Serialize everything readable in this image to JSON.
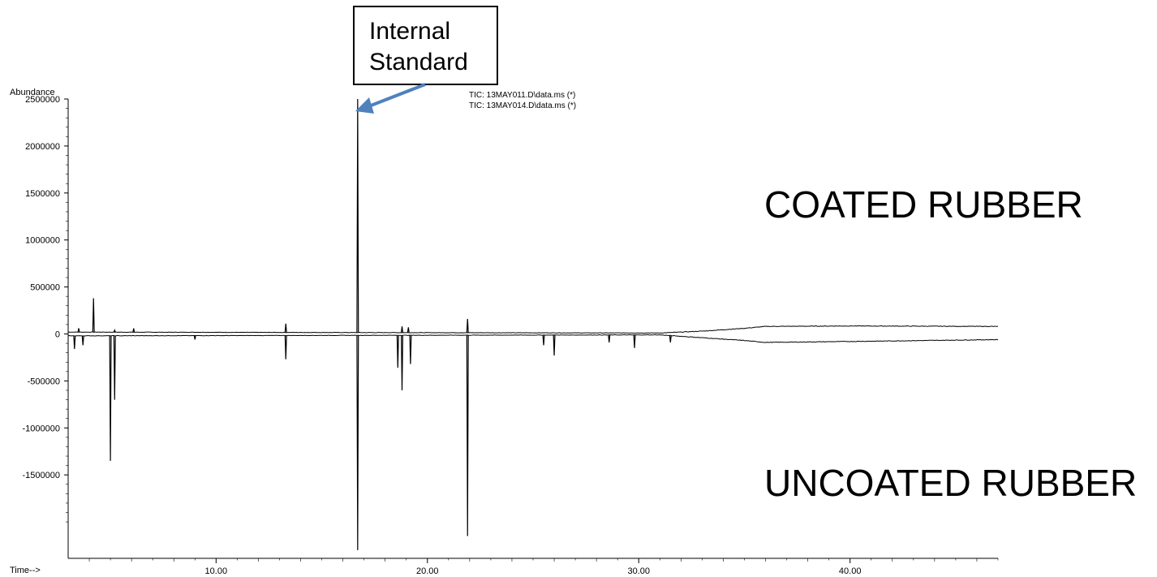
{
  "chart_data": {
    "type": "line",
    "title": "",
    "ylabel": "Abundance",
    "xlabel": "Time-->",
    "xlim": [
      3.0,
      47.0
    ],
    "ylim": [
      -2300000,
      2500000
    ],
    "x_ticks": [
      10,
      20,
      30,
      40
    ],
    "x_tick_labels": [
      "10.00",
      "20.00",
      "30.00",
      "40.00"
    ],
    "y_ticks": [
      2500000,
      2000000,
      1500000,
      1000000,
      500000,
      0,
      -500000,
      -1000000,
      -1500000
    ],
    "y_tick_labels": [
      "2500000",
      "2000000",
      "1500000",
      "1000000",
      "500000",
      "0",
      "-500000",
      "-1000000",
      "-1500000"
    ],
    "grid": false,
    "legend": {
      "placement": "top-center",
      "entries": [
        "TIC: 13MAY011.D\\data.ms (*)",
        "TIC: 13MAY014.D\\data.ms (*)"
      ]
    },
    "series": [
      {
        "name": "TIC: 13MAY011.D\\data.ms (*)",
        "baseline": [
          [
            3.0,
            20000
          ],
          [
            31.0,
            10000
          ],
          [
            33.0,
            30000
          ],
          [
            35.0,
            60000
          ],
          [
            36.0,
            80000
          ],
          [
            40.0,
            85000
          ],
          [
            47.0,
            80000
          ]
        ],
        "peaks": [
          {
            "x": 3.5,
            "y": 60000
          },
          {
            "x": 4.2,
            "y": 380000
          },
          {
            "x": 5.2,
            "y": 40000
          },
          {
            "x": 6.1,
            "y": 60000
          },
          {
            "x": 13.3,
            "y": 110000
          },
          {
            "x": 16.7,
            "y": 2500000
          },
          {
            "x": 18.8,
            "y": 80000
          },
          {
            "x": 19.1,
            "y": 70000
          },
          {
            "x": 21.9,
            "y": 160000
          }
        ]
      },
      {
        "name": "TIC: 13MAY014.D\\data.ms (*)",
        "baseline": [
          [
            3.0,
            -20000
          ],
          [
            31.0,
            -10000
          ],
          [
            33.0,
            -40000
          ],
          [
            35.0,
            -70000
          ],
          [
            36.0,
            -90000
          ],
          [
            40.0,
            -80000
          ],
          [
            47.0,
            -60000
          ]
        ],
        "peaks": [
          {
            "x": 3.3,
            "y": -160000
          },
          {
            "x": 3.7,
            "y": -120000
          },
          {
            "x": 5.0,
            "y": -1350000
          },
          {
            "x": 5.2,
            "y": -700000
          },
          {
            "x": 9.0,
            "y": -60000
          },
          {
            "x": 13.3,
            "y": -270000
          },
          {
            "x": 16.7,
            "y": -2300000
          },
          {
            "x": 18.6,
            "y": -360000
          },
          {
            "x": 18.8,
            "y": -600000
          },
          {
            "x": 19.2,
            "y": -320000
          },
          {
            "x": 21.9,
            "y": -2150000
          },
          {
            "x": 25.5,
            "y": -120000
          },
          {
            "x": 26.0,
            "y": -230000
          },
          {
            "x": 28.6,
            "y": -90000
          },
          {
            "x": 29.8,
            "y": -150000
          },
          {
            "x": 31.5,
            "y": -90000
          }
        ]
      }
    ]
  },
  "annotations": {
    "callout_lines": [
      "Internal",
      "Standard"
    ],
    "coated_label": "COATED RUBBER",
    "uncoated_label": "UNCOATED RUBBER"
  },
  "colors": {
    "trace": "#000000",
    "arrow": "#4f81bd"
  }
}
